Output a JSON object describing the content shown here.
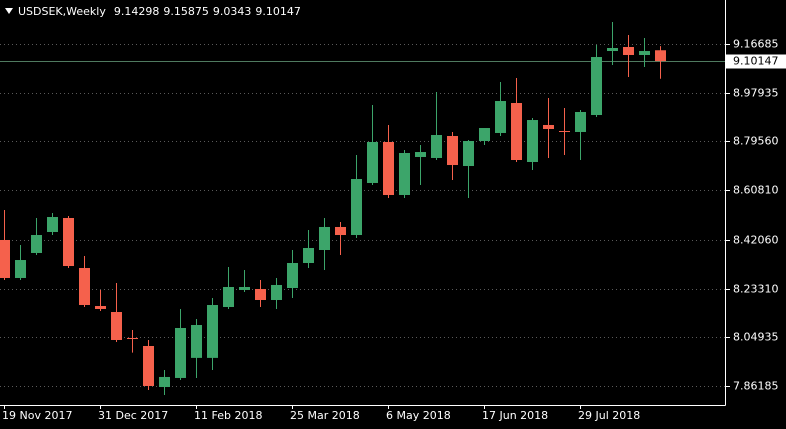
{
  "chart_data": {
    "type": "candlestick",
    "title": "USDSEK,Weekly",
    "categories": [
      "19 Nov 2017",
      null,
      null,
      null,
      null,
      null,
      "31 Dec 2017",
      null,
      null,
      null,
      null,
      null,
      "11 Feb 2018",
      null,
      null,
      null,
      null,
      null,
      "25 Mar 2018",
      null,
      null,
      null,
      null,
      null,
      "6 May 2018",
      null,
      null,
      null,
      null,
      null,
      "17 Jun 2018",
      null,
      null,
      null,
      null,
      null,
      "29 Jul 2018",
      null,
      null,
      null,
      null,
      null
    ],
    "open": [
      8.419,
      8.274,
      8.3694,
      8.4495,
      8.5029,
      8.3121,
      8.1671,
      8.1442,
      8.045,
      8.0145,
      7.858,
      7.8925,
      7.9691,
      7.9691,
      8.1633,
      8.2282,
      8.232,
      8.19,
      8.2358,
      8.3312,
      8.3808,
      8.4686,
      8.438,
      8.6365,
      8.7929,
      8.5907,
      8.7357,
      8.7319,
      8.8158,
      8.7013,
      8.7967,
      8.8273,
      8.9417,
      8.7166,
      8.8578,
      8.8349,
      8.8311,
      8.8959,
      9.1401,
      9.1554,
      9.1249,
      9.14298
    ],
    "high": [
      8.5334,
      8.3999,
      8.5029,
      8.522,
      8.5105,
      8.3579,
      8.2282,
      8.2549,
      8.0755,
      8.0374,
      7.9229,
      8.1557,
      8.1175,
      8.1976,
      8.3159,
      8.3045,
      8.2663,
      8.274,
      8.3808,
      8.4571,
      8.5029,
      8.4876,
      8.7433,
      8.9341,
      8.8578,
      8.7624,
      8.7815,
      8.9837,
      8.8311,
      8.8004,
      8.8463,
      9.0218,
      9.0371,
      8.8845,
      8.9608,
      8.9227,
      8.915,
      9.163,
      9.2508,
      9.2012,
      9.1898,
      9.15875
    ],
    "low": [
      8.2663,
      8.2663,
      8.3617,
      8.438,
      8.3121,
      8.1633,
      8.148,
      8.0298,
      7.989,
      7.8466,
      7.8275,
      7.8848,
      7.8925,
      7.9229,
      8.1557,
      8.2205,
      8.1633,
      8.1557,
      8.1976,
      8.3121,
      8.3045,
      8.3617,
      8.4266,
      8.6288,
      8.5792,
      8.5792,
      8.6288,
      8.7242,
      8.6479,
      8.5792,
      8.7815,
      8.8158,
      8.7166,
      8.6861,
      8.7319,
      8.7433,
      8.7242,
      8.8883,
      9.0867,
      9.0409,
      9.079,
      9.0343
    ],
    "close": [
      8.274,
      8.3426,
      8.438,
      8.5067,
      8.3197,
      8.1709,
      8.1557,
      8.0374,
      8.0412,
      7.8619,
      7.8963,
      8.0832,
      8.0946,
      8.1709,
      8.2396,
      8.2396,
      8.19,
      8.2473,
      8.3312,
      8.3884,
      8.4686,
      8.438,
      8.6517,
      8.7929,
      8.5907,
      8.7509,
      8.7547,
      8.8196,
      8.7051,
      8.7967,
      8.8463,
      8.9493,
      8.7242,
      8.8768,
      8.8425,
      8.8311,
      8.9074,
      9.1172,
      9.1516,
      9.1249,
      9.1401,
      9.10147
    ],
    "up_color": "#3ca56a",
    "down_color": "#f5614c",
    "ylim": [
      7.78935,
      9.33475
    ],
    "yticks": [
      9.16685,
      8.97935,
      {
        "value": 8.7956,
        "label": "8.79560"
      },
      {
        "value": 8.6081,
        "label": "8.60810"
      },
      {
        "value": 8.4206,
        "label": "8.42060"
      },
      {
        "value": 8.2331,
        "label": "8.23310"
      },
      8.04935,
      7.86185
    ],
    "grid": true
  }
}
